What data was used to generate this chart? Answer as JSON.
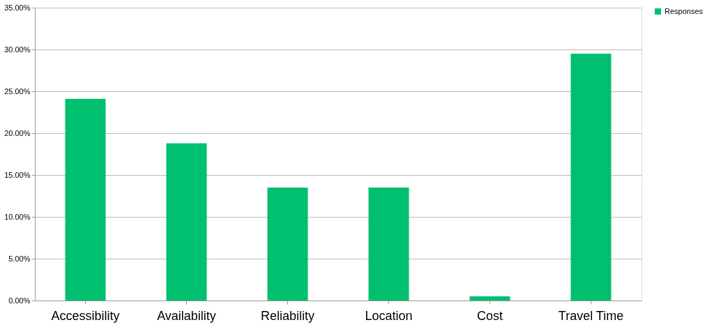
{
  "chart_data": {
    "type": "bar",
    "categories": [
      "Accessibility",
      "Availability",
      "Reliability",
      "Location",
      "Cost",
      "Travel Time"
    ],
    "series": [
      {
        "name": "Responses",
        "color": "#00bf6f",
        "values": [
          24.1,
          18.8,
          13.5,
          13.5,
          0.5,
          29.5
        ]
      }
    ],
    "ylim": [
      0,
      35
    ],
    "yticks": [
      {
        "value": 0,
        "label": "0.00%"
      },
      {
        "value": 5,
        "label": "5.00%"
      },
      {
        "value": 10,
        "label": "10.00%"
      },
      {
        "value": 15,
        "label": "15.00%"
      },
      {
        "value": 20,
        "label": "20.00%"
      },
      {
        "value": 25,
        "label": "25.00%"
      },
      {
        "value": 30,
        "label": "30.00%"
      },
      {
        "value": 35,
        "label": "35.00%"
      }
    ],
    "grid": "y",
    "legend": "right"
  }
}
